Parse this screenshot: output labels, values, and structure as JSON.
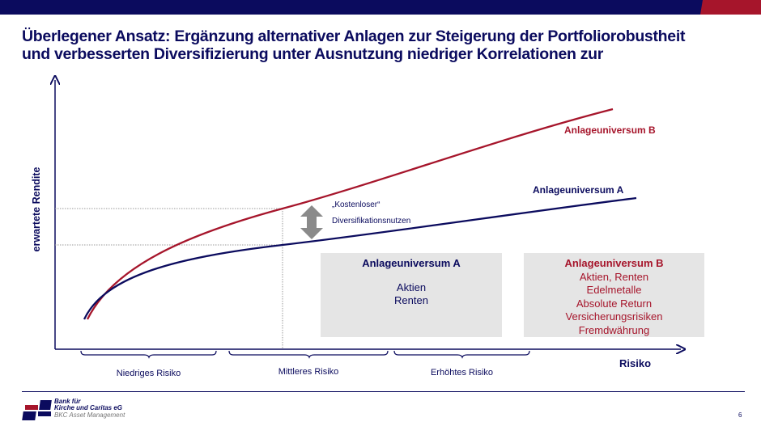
{
  "title": {
    "line1": "Überlegener Ansatz: Ergänzung alternativer Anlagen zur Steigerung der Portfoliorobustheit",
    "line2": "und verbesserten Diversifizierung unter Ausnutzung niedriger Korrelationen zur"
  },
  "diagram": {
    "y_axis_label": "erwartete Rendite",
    "x_axis_label": "Risiko",
    "curve_a_label": "Anlageuniversum A",
    "curve_b_label": "Anlageuniversum B",
    "annotation": {
      "line1": "„Kostenloser“",
      "line2": "Diversifikationsnutzen"
    },
    "risk_ranges": [
      "Niedriges Risiko",
      "Mittleres Risiko",
      "Erhöhtes Risiko"
    ],
    "box_a": {
      "title": "Anlageuniversum A",
      "items": [
        "Aktien",
        "Renten"
      ]
    },
    "box_b": {
      "title": "Anlageuniversum B",
      "items": [
        "Aktien, Renten",
        "Edelmetalle",
        "Absolute Return",
        "Versicherungsrisiken",
        "Fremdwährung"
      ]
    },
    "colors": {
      "a": "#0b0b5e",
      "b": "#a6152b",
      "arrow": "#8a8a8a"
    }
  },
  "footer": {
    "logo_line1": "Bank für",
    "logo_line2": "Kirche und Caritas eG",
    "logo_line3": "BKC Asset Management",
    "page": "6"
  }
}
